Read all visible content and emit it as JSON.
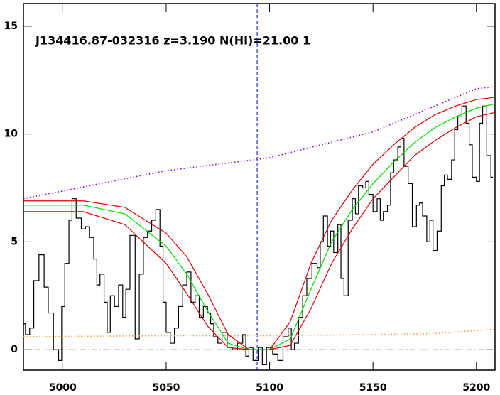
{
  "chart_data": {
    "type": "line",
    "annotation": "J134416.87-032316 z=3.190 N(HI)=21.00 1",
    "xlim": [
      4981,
      5209
    ],
    "ylim": [
      -0.95,
      16.05
    ],
    "xticks": [
      5000,
      5050,
      5100,
      5150,
      5200
    ],
    "yticks": [
      0,
      5,
      10,
      15
    ],
    "zero_line": 0,
    "vline": 5094,
    "series": [
      {
        "color": "#000000",
        "style": "step",
        "x": [
          4981,
          4983,
          4985,
          4987,
          4990,
          4992,
          4994,
          4997,
          4999,
          5000,
          5002,
          5004,
          5005,
          5008,
          5010,
          5012,
          5014,
          5016,
          5017,
          5019,
          5021,
          5022,
          5024,
          5026,
          5028,
          5030,
          5031,
          5034,
          5036,
          5038,
          5040,
          5042,
          5044,
          5046,
          5048,
          5049,
          5051,
          5053,
          5055,
          5057,
          5059,
          5061,
          5063,
          5065,
          5067,
          5069,
          5071,
          5072,
          5074,
          5076,
          5078,
          5081,
          5083,
          5086,
          5088,
          5089,
          5091,
          5093,
          5096,
          5097,
          5100,
          5103,
          5105,
          5108,
          5110,
          5111,
          5113,
          5115,
          5117,
          5119,
          5122,
          5124,
          5125,
          5127,
          5129,
          5130,
          5132,
          5134,
          5135,
          5137,
          5139,
          5141,
          5142,
          5144,
          5146,
          5147,
          5149,
          5151,
          5153,
          5154,
          5156,
          5158,
          5159,
          5161,
          5163,
          5164,
          5166,
          5168,
          5170,
          5172,
          5173,
          5175,
          5177,
          5178,
          5180,
          5182,
          5184,
          5185,
          5187,
          5189,
          5190,
          5192,
          5194,
          5196,
          5197,
          5199,
          5201,
          5202,
          5204,
          5206,
          5208
        ],
        "values": [
          1.2,
          0.7,
          1.0,
          3.2,
          4.4,
          2.9,
          1.7,
          0.0,
          -0.5,
          2.0,
          4.0,
          6.0,
          7.0,
          6.1,
          5.6,
          5.7,
          5.2,
          4.2,
          3.0,
          3.5,
          2.2,
          0.8,
          2.5,
          2.0,
          3.0,
          1.5,
          2.8,
          5.3,
          0.5,
          3.5,
          5.2,
          5.5,
          6.0,
          6.5,
          4.8,
          2.2,
          0.8,
          0.3,
          1.0,
          2.0,
          3.0,
          3.6,
          2.2,
          2.5,
          1.5,
          2.0,
          1.7,
          1.2,
          0.6,
          0.3,
          0.8,
          0.1,
          0.0,
          0.3,
          0.7,
          -0.3,
          0.1,
          -0.5,
          0.1,
          -0.7,
          0.1,
          -0.2,
          -0.5,
          0.6,
          1.0,
          0.0,
          0.3,
          1.5,
          2.5,
          3.3,
          4.0,
          3.8,
          5.0,
          6.2,
          4.8,
          5.5,
          4.5,
          5.8,
          3.3,
          2.5,
          6.0,
          7.0,
          6.3,
          7.6,
          7.5,
          7.8,
          7.2,
          6.4,
          7.0,
          6.0,
          6.4,
          6.7,
          8.2,
          8.8,
          9.4,
          9.8,
          8.5,
          7.7,
          5.7,
          6.7,
          6.8,
          6.2,
          5.0,
          6.0,
          4.6,
          5.5,
          7.6,
          8.1,
          7.9,
          8.8,
          10.2,
          10.8,
          11.3,
          10.5,
          9.5,
          8.0,
          7.8,
          10.5,
          11.3,
          9.0,
          8.0
        ]
      },
      {
        "color": "#00dd00",
        "style": "solid",
        "x": [
          4981,
          5010,
          5030,
          5050,
          5060,
          5070,
          5080,
          5090,
          5100,
          5110,
          5120,
          5130,
          5140,
          5150,
          5160,
          5170,
          5180,
          5190,
          5200,
          5209
        ],
        "values": [
          6.7,
          6.7,
          6.3,
          4.8,
          3.5,
          1.8,
          0.3,
          0,
          0,
          0.5,
          2.8,
          5.0,
          6.5,
          7.7,
          8.7,
          9.6,
          10.3,
          10.8,
          11.2,
          11.4
        ]
      },
      {
        "color": "#dd0000",
        "style": "solid",
        "x": [
          4981,
          5010,
          5030,
          5050,
          5060,
          5070,
          5080,
          5090,
          5100,
          5110,
          5120,
          5130,
          5140,
          5150,
          5160,
          5170,
          5180,
          5190,
          5200,
          5209
        ],
        "values": [
          6.9,
          6.9,
          6.6,
          5.4,
          4.3,
          2.6,
          0.7,
          0,
          0,
          1.3,
          4.0,
          6.0,
          7.4,
          8.6,
          9.5,
          10.3,
          10.9,
          11.3,
          11.6,
          11.7
        ]
      },
      {
        "color": "#dd0000",
        "style": "solid",
        "x": [
          4981,
          5010,
          5030,
          5050,
          5060,
          5070,
          5080,
          5090,
          5100,
          5110,
          5120,
          5130,
          5140,
          5150,
          5160,
          5170,
          5180,
          5190,
          5200,
          5209
        ],
        "values": [
          6.4,
          6.4,
          5.8,
          4.0,
          2.6,
          1.1,
          0.1,
          0,
          0,
          0.2,
          1.9,
          4.0,
          5.6,
          7.0,
          8.0,
          9.0,
          9.7,
          10.3,
          10.8,
          11.0
        ]
      },
      {
        "color": "#8800ee",
        "style": "dotted",
        "x": [
          4981,
          5050,
          5100,
          5150,
          5200,
          5209
        ],
        "values": [
          7.0,
          8.3,
          8.9,
          10.1,
          12.1,
          12.2
        ]
      },
      {
        "color": "#ff9933",
        "style": "dotted",
        "x": [
          4981,
          5050,
          5100,
          5150,
          5180,
          5209
        ],
        "values": [
          0.6,
          0.65,
          0.65,
          0.7,
          0.75,
          0.95
        ]
      }
    ]
  }
}
